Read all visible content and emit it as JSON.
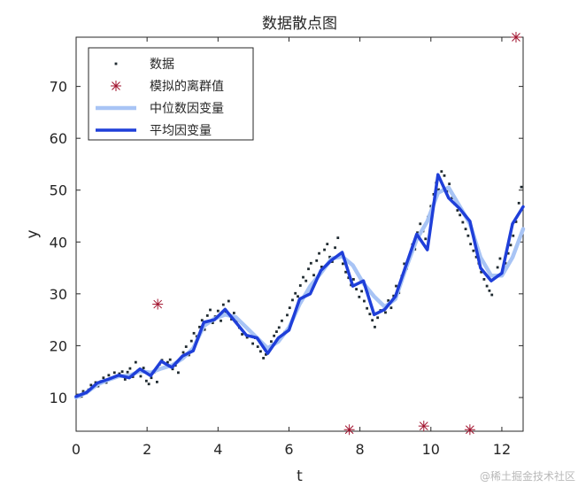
{
  "chart_data": {
    "type": "scatter",
    "title": "数据散点图",
    "xlabel": "t",
    "ylabel": "y",
    "xlim": [
      0,
      12.6
    ],
    "ylim": [
      3.5,
      79.5
    ],
    "xticks": [
      0,
      2,
      4,
      6,
      8,
      10,
      12
    ],
    "yticks": [
      10,
      20,
      30,
      40,
      50,
      60,
      70
    ],
    "grid": false,
    "box": true,
    "legend_position": "top-left",
    "legend": [
      {
        "label": "数据",
        "kind": "marker-dot"
      },
      {
        "label": "模拟的离群值",
        "kind": "marker-star"
      },
      {
        "label": "中位数因变量",
        "kind": "line-light"
      },
      {
        "label": "平均因变量",
        "kind": "line-dark"
      }
    ],
    "colors": {
      "data": "#1f2a30",
      "outliers": "#a2142f",
      "median_line": "#a8c4f5",
      "mean_line": "#1f3fd9",
      "axes": "#262626"
    },
    "series": [
      {
        "name": "模拟的离群值",
        "role": "outliers",
        "x": [
          2.3,
          7.7,
          9.8,
          11.1,
          12.4
        ],
        "y": [
          28.0,
          3.8,
          4.5,
          3.8,
          79.5
        ]
      },
      {
        "name": "中位数因变量",
        "role": "median",
        "x": [
          0,
          0.3,
          0.6,
          0.9,
          1.2,
          1.5,
          1.8,
          2.1,
          2.4,
          2.7,
          3.0,
          3.3,
          3.6,
          3.9,
          4.2,
          4.5,
          4.8,
          5.1,
          5.4,
          5.7,
          6.0,
          6.3,
          6.6,
          6.9,
          7.2,
          7.5,
          7.8,
          8.1,
          8.4,
          8.7,
          9.0,
          9.3,
          9.6,
          9.9,
          10.2,
          10.5,
          10.8,
          11.1,
          11.4,
          11.7,
          12.0,
          12.3,
          12.6
        ],
        "y": [
          10.0,
          11.0,
          12.5,
          13.4,
          14.1,
          14.2,
          15.1,
          14.8,
          15.6,
          16.2,
          17.5,
          19.5,
          23.8,
          25.2,
          26.0,
          25.5,
          23.5,
          21.5,
          19.5,
          20.8,
          23.5,
          28.0,
          31.5,
          34.0,
          36.8,
          37.2,
          35.5,
          32.0,
          29.5,
          27.5,
          29.0,
          35.0,
          40.5,
          44.0,
          49.5,
          50.5,
          47.0,
          43.5,
          37.0,
          33.5,
          33.5,
          37.0,
          42.5
        ]
      },
      {
        "name": "平均因变量",
        "role": "mean",
        "x": [
          0,
          0.3,
          0.6,
          0.9,
          1.2,
          1.5,
          1.8,
          2.1,
          2.4,
          2.7,
          3.0,
          3.3,
          3.6,
          3.9,
          4.2,
          4.5,
          4.8,
          5.1,
          5.4,
          5.7,
          6.0,
          6.3,
          6.6,
          6.9,
          7.2,
          7.5,
          7.8,
          8.1,
          8.4,
          8.7,
          9.0,
          9.3,
          9.6,
          9.9,
          10.2,
          10.5,
          10.8,
          11.1,
          11.4,
          11.7,
          12.0,
          12.3,
          12.6
        ],
        "y": [
          10.2,
          11.0,
          12.8,
          13.5,
          14.3,
          13.8,
          15.5,
          14.2,
          17.0,
          15.8,
          18.0,
          19.0,
          24.5,
          25.0,
          27.0,
          24.5,
          22.0,
          21.5,
          18.5,
          21.5,
          23.0,
          29.0,
          30.0,
          34.5,
          36.5,
          38.0,
          31.5,
          32.5,
          26.0,
          27.0,
          29.5,
          35.5,
          41.5,
          38.5,
          53.0,
          48.5,
          46.5,
          44.0,
          35.0,
          32.5,
          34.0,
          43.5,
          46.8
        ]
      },
      {
        "name": "数据",
        "role": "data",
        "x": [
          0.05,
          0.15,
          0.2,
          0.28,
          0.35,
          0.42,
          0.48,
          0.55,
          0.62,
          0.7,
          0.77,
          0.85,
          0.92,
          1.0,
          1.08,
          1.15,
          1.22,
          1.3,
          1.38,
          1.45,
          1.52,
          1.6,
          1.68,
          1.75,
          1.82,
          1.9,
          1.98,
          2.05,
          2.12,
          2.2,
          2.28,
          2.35,
          2.42,
          2.5,
          2.58,
          2.65,
          2.72,
          2.8,
          2.88,
          2.95,
          3.02,
          3.1,
          3.18,
          3.25,
          3.32,
          3.4,
          3.48,
          3.55,
          3.62,
          3.7,
          3.78,
          3.85,
          3.92,
          4.0,
          4.08,
          4.15,
          4.22,
          4.3,
          4.38,
          4.45,
          4.52,
          4.6,
          4.68,
          4.75,
          4.82,
          4.9,
          4.98,
          5.05,
          5.12,
          5.2,
          5.28,
          5.35,
          5.42,
          5.5,
          5.58,
          5.65,
          5.72,
          5.8,
          5.88,
          5.95,
          6.02,
          6.1,
          6.18,
          6.25,
          6.32,
          6.4,
          6.48,
          6.55,
          6.62,
          6.7,
          6.78,
          6.85,
          6.92,
          7.0,
          7.08,
          7.15,
          7.22,
          7.3,
          7.38,
          7.45,
          7.52,
          7.6,
          7.68,
          7.75,
          7.82,
          7.9,
          7.98,
          8.05,
          8.12,
          8.2,
          8.28,
          8.35,
          8.42,
          8.5,
          8.58,
          8.65,
          8.72,
          8.8,
          8.88,
          8.95,
          9.02,
          9.1,
          9.18,
          9.25,
          9.32,
          9.4,
          9.48,
          9.55,
          9.62,
          9.7,
          9.78,
          9.85,
          9.92,
          10.0,
          10.08,
          10.15,
          10.22,
          10.3,
          10.38,
          10.45,
          10.52,
          10.6,
          10.68,
          10.75,
          10.82,
          10.9,
          10.98,
          11.05,
          11.12,
          11.2,
          11.28,
          11.35,
          11.42,
          11.5,
          11.58,
          11.65,
          11.72,
          11.8,
          11.88,
          11.95,
          12.02,
          12.1,
          12.18,
          12.25,
          12.32,
          12.4,
          12.48,
          12.55
        ],
        "y": [
          10.5,
          10.2,
          11.2,
          10.8,
          11.5,
          12.4,
          12.0,
          12.9,
          12.2,
          13.1,
          13.8,
          12.9,
          14.3,
          13.6,
          14.8,
          13.9,
          14.6,
          15.0,
          13.5,
          14.9,
          15.6,
          14.0,
          16.8,
          15.2,
          14.1,
          15.7,
          13.2,
          12.6,
          13.8,
          14.9,
          13.0,
          16.4,
          17.2,
          15.9,
          16.8,
          17.3,
          15.5,
          16.2,
          14.8,
          17.5,
          18.7,
          19.8,
          18.2,
          20.9,
          22.4,
          21.8,
          23.6,
          24.9,
          23.1,
          25.8,
          26.9,
          24.4,
          25.6,
          26.7,
          24.8,
          27.9,
          26.5,
          28.6,
          25.1,
          26.3,
          24.6,
          23.5,
          22.2,
          23.8,
          21.6,
          22.9,
          20.4,
          21.5,
          19.8,
          18.9,
          17.6,
          18.3,
          19.6,
          20.8,
          21.9,
          22.7,
          23.5,
          24.8,
          22.6,
          25.9,
          27.3,
          28.8,
          30.1,
          29.5,
          31.6,
          33.2,
          32.5,
          34.8,
          35.9,
          33.6,
          36.4,
          37.8,
          35.2,
          38.5,
          39.6,
          37.1,
          36.2,
          38.9,
          40.8,
          37.4,
          35.8,
          34.2,
          33.1,
          31.7,
          32.8,
          30.9,
          29.4,
          30.5,
          28.6,
          27.2,
          26.1,
          24.9,
          23.6,
          25.4,
          26.8,
          27.9,
          26.4,
          28.7,
          27.3,
          29.6,
          31.5,
          30.2,
          33.4,
          35.8,
          34.9,
          37.2,
          39.5,
          38.6,
          41.8,
          43.5,
          42.1,
          40.6,
          44.8,
          46.9,
          49.2,
          51.4,
          50.1,
          53.6,
          52.8,
          49.7,
          51.2,
          48.5,
          47.3,
          46.1,
          45.2,
          43.8,
          42.5,
          41.2,
          39.6,
          38.3,
          37.1,
          35.9,
          34.2,
          32.8,
          31.5,
          30.6,
          29.8,
          33.4,
          35.1,
          36.8,
          34.6,
          35.9,
          37.8,
          39.4,
          41.2,
          43.9,
          47.5,
          50.6
        ]
      }
    ]
  },
  "watermark": "@稀土掘金技术社区"
}
